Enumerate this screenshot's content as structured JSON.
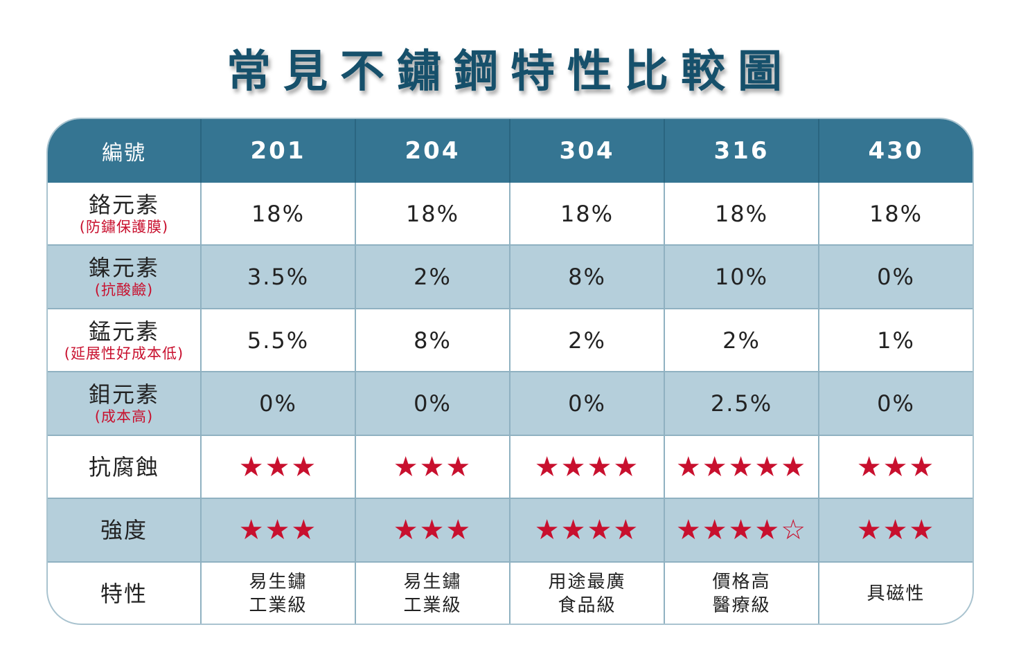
{
  "title": "常見不鏽鋼特性比較圖",
  "colors": {
    "title": "#16506b",
    "header_bg": "#357592",
    "shade_row": "#b5cfdb",
    "star": "#c8102e",
    "note": "#c8102e"
  },
  "chart_data": {
    "type": "table",
    "header_label": "編號",
    "columns": [
      "201",
      "204",
      "304",
      "316",
      "430"
    ],
    "rows": [
      {
        "label": "鉻元素",
        "note": "(防鏽保護膜)",
        "values": [
          "18%",
          "18%",
          "18%",
          "18%",
          "18%"
        ]
      },
      {
        "label": "鎳元素",
        "note": "(抗酸鹼)",
        "values": [
          "3.5%",
          "2%",
          "8%",
          "10%",
          "0%"
        ]
      },
      {
        "label": "錳元素",
        "note": "(延展性好成本低)",
        "values": [
          "5.5%",
          "8%",
          "2%",
          "2%",
          "1%"
        ]
      },
      {
        "label": "鉬元素",
        "note": "(成本高)",
        "values": [
          "0%",
          "0%",
          "0%",
          "2.5%",
          "0%"
        ]
      },
      {
        "label": "抗腐蝕",
        "rating": true,
        "max": 5,
        "ratings": [
          3,
          3,
          4,
          5,
          3
        ]
      },
      {
        "label": "強度",
        "rating": true,
        "max": 5,
        "ratings": [
          3,
          3,
          4,
          4,
          3
        ],
        "show_empty": [
          false,
          false,
          false,
          true,
          false
        ]
      },
      {
        "label": "特性",
        "desc": [
          [
            "易生鏽",
            "工業級"
          ],
          [
            "易生鏽",
            "工業級"
          ],
          [
            "用途最廣",
            "食品級"
          ],
          [
            "價格高",
            "醫療級"
          ],
          [
            "具磁性"
          ]
        ]
      }
    ]
  }
}
